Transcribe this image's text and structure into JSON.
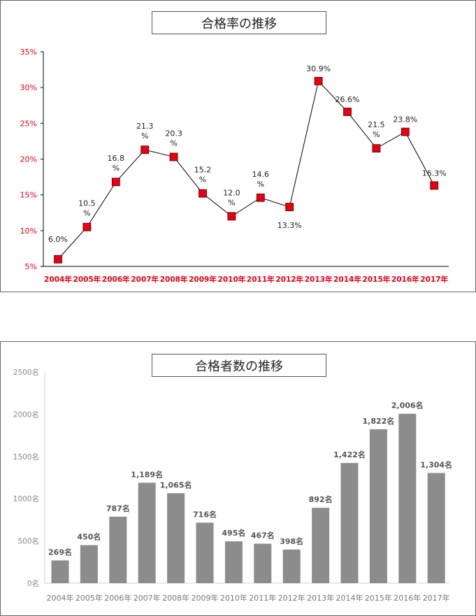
{
  "chart_data": [
    {
      "type": "line",
      "title": "合格率の推移",
      "categories": [
        "2004年",
        "2005年",
        "2006年",
        "2007年",
        "2008年",
        "2009年",
        "2010年",
        "2011年",
        "2012年",
        "2013年",
        "2014年",
        "2015年",
        "2016年",
        "2017年"
      ],
      "values": [
        6.0,
        10.5,
        16.8,
        21.3,
        20.3,
        15.2,
        12.0,
        14.6,
        13.3,
        30.9,
        26.6,
        21.5,
        23.8,
        16.3
      ],
      "data_labels": [
        "6.0%",
        "10.5\n%",
        "16.8\n%",
        "21.3\n%",
        "20.3\n%",
        "15.2\n%",
        "12.0\n%",
        "14.6\n%",
        "13.3%",
        "30.9%",
        "26.6%",
        "21.5\n%",
        "23.8%",
        "16.3%"
      ],
      "y_ticks": [
        "5%",
        "10%",
        "15%",
        "20%",
        "25%",
        "30%",
        "35%"
      ],
      "ylim": [
        5,
        35
      ],
      "marker_color": "#e60012",
      "tick_label_color": "#e60012",
      "line_color": "#000000",
      "grid": false
    },
    {
      "type": "bar",
      "title": "合格者数の推移",
      "categories": [
        "2004年",
        "2005年",
        "2006年",
        "2007年",
        "2008年",
        "2009年",
        "2010年",
        "2011年",
        "2012年",
        "2013年",
        "2014年",
        "2015年",
        "2016年",
        "2017年"
      ],
      "values": [
        269,
        450,
        787,
        1189,
        1065,
        716,
        495,
        467,
        398,
        892,
        1422,
        1822,
        2006,
        1304
      ],
      "data_labels": [
        "269名",
        "450名",
        "787名",
        "1,189名",
        "1,065名",
        "716名",
        "495名",
        "467名",
        "398名",
        "892名",
        "1,422名",
        "1,822名",
        "2,006名",
        "1,304名"
      ],
      "y_ticks": [
        "0名",
        "500名",
        "1000名",
        "1500名",
        "2000名",
        "2500名"
      ],
      "ylim": [
        0,
        2500
      ],
      "bar_color": "#8c8c8c",
      "grid": false
    }
  ]
}
